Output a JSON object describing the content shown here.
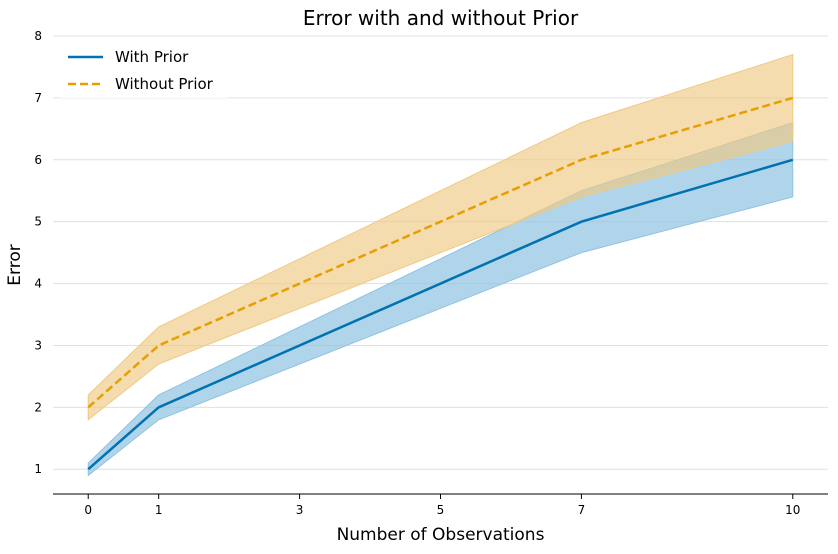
{
  "chart_data": {
    "type": "line",
    "title": "Error with and without Prior",
    "xlabel": "Number of Observations",
    "ylabel": "Error",
    "x": [
      0,
      1,
      7,
      10
    ],
    "xticks": [
      0,
      1,
      3,
      5,
      7,
      10
    ],
    "yticks": [
      1,
      2,
      3,
      4,
      5,
      6,
      7,
      8
    ],
    "xlim": [
      -0.5,
      10.5
    ],
    "ylim": [
      0.6,
      8
    ],
    "grid": "horizontal",
    "legend_position": "top-left",
    "series": [
      {
        "name": "With Prior",
        "values": [
          1,
          2,
          5,
          6
        ],
        "band_lower": [
          0.9,
          1.8,
          4.5,
          5.4
        ],
        "band_upper": [
          1.1,
          2.2,
          5.5,
          6.6
        ],
        "color": "#0072b2",
        "band_color": "#8fc3e2",
        "line_style": "solid"
      },
      {
        "name": "Without Prior",
        "values": [
          2,
          3,
          6,
          7
        ],
        "band_lower": [
          1.8,
          2.7,
          5.4,
          6.3
        ],
        "band_upper": [
          2.2,
          3.3,
          6.6,
          7.7
        ],
        "color": "#e69f00",
        "band_color": "#efc983",
        "line_style": "dashed"
      }
    ]
  }
}
